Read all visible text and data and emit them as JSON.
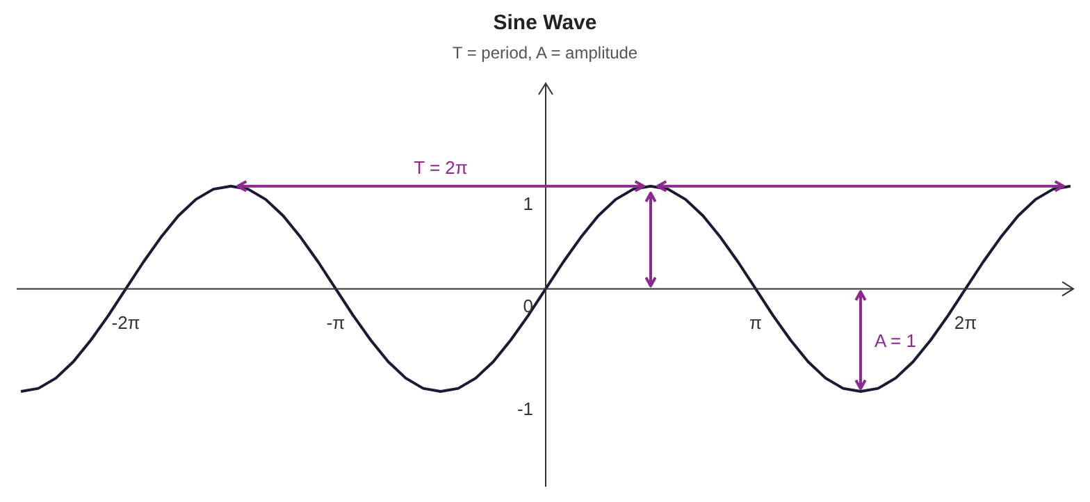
{
  "chart_data": {
    "type": "line",
    "title": "Sine Wave",
    "subtitle": "T = period, A = amplitude",
    "x": [
      -7.854,
      -7.592,
      -7.33,
      -7.069,
      -6.807,
      -6.545,
      -6.283,
      -6.021,
      -5.76,
      -5.498,
      -5.236,
      -4.974,
      -4.712,
      -4.451,
      -4.189,
      -3.927,
      -3.665,
      -3.403,
      -3.142,
      -2.88,
      -2.618,
      -2.356,
      -2.094,
      -1.833,
      -1.571,
      -1.309,
      -1.047,
      -0.785,
      -0.524,
      -0.262,
      0,
      0.262,
      0.524,
      0.785,
      1.047,
      1.309,
      1.571,
      1.833,
      2.094,
      2.356,
      2.618,
      2.88,
      3.142,
      3.403,
      3.665,
      3.927,
      4.189,
      4.451,
      4.712,
      4.974,
      5.236,
      5.498,
      5.76,
      6.021,
      6.283,
      6.545,
      6.807,
      7.069,
      7.33,
      7.592,
      7.854
    ],
    "series": [
      {
        "color": "#1c1a33",
        "values": [
          -1,
          -0.97,
          -0.87,
          -0.71,
          -0.5,
          -0.26,
          0,
          0.26,
          0.5,
          0.71,
          0.87,
          0.97,
          1,
          0.97,
          0.87,
          0.71,
          0.5,
          0.26,
          0,
          -0.26,
          -0.5,
          -0.71,
          -0.87,
          -0.97,
          -1,
          -0.97,
          -0.87,
          -0.71,
          -0.5,
          -0.26,
          0,
          0.26,
          0.5,
          0.71,
          0.87,
          0.97,
          1,
          0.97,
          0.87,
          0.71,
          0.5,
          0.26,
          0,
          -0.26,
          -0.5,
          -0.71,
          -0.87,
          -0.97,
          -1,
          -0.97,
          -0.87,
          -0.71,
          -0.5,
          -0.26,
          0,
          0.26,
          0.5,
          0.71,
          0.87,
          0.97,
          1
        ]
      }
    ],
    "xlim": [
      -7.854,
      7.854
    ],
    "ylim": [
      -1.9,
      2
    ],
    "xticks": [
      {
        "value": -6.283,
        "label": "-2π"
      },
      {
        "value": -3.142,
        "label": "-π"
      },
      {
        "value": 3.142,
        "label": "π"
      },
      {
        "value": 6.283,
        "label": "2π"
      }
    ],
    "yticks": [
      -1,
      0,
      1
    ],
    "annotations": [
      "T = 2π",
      "A = 1"
    ]
  }
}
